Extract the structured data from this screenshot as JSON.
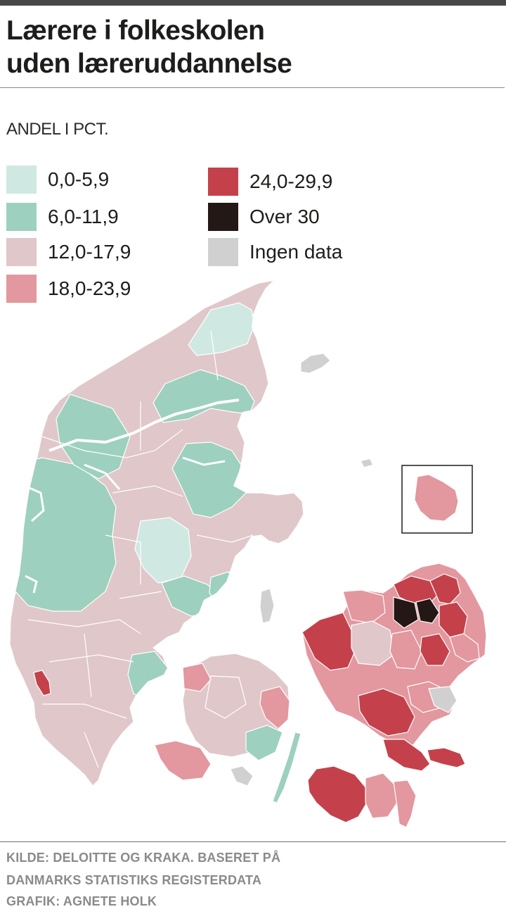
{
  "title_line1": "Lærere i folkeskolen",
  "title_line2": "uden læreruddannelse",
  "unit_label": "ANDEL I PCT.",
  "legend": [
    {
      "label": "0,0-5,9",
      "color": "#cfe9e2"
    },
    {
      "label": "6,0-11,9",
      "color": "#9dd0bf"
    },
    {
      "label": "12,0-17,9",
      "color": "#e0c7c9"
    },
    {
      "label": "18,0-23,9",
      "color": "#e3979e"
    },
    {
      "label": "24,0-29,9",
      "color": "#c4414b"
    },
    {
      "label": "Over 30",
      "color": "#231815"
    },
    {
      "label": "Ingen data",
      "color": "#d0d0d0"
    }
  ],
  "credits": {
    "line1": "KILDE: DELOITTE OG KRAKA. BASERET PÅ",
    "line2": "DANMARKS STATISTIKS REGISTERDATA",
    "line3": "GRAFIK: AGNETE HOLK"
  }
}
